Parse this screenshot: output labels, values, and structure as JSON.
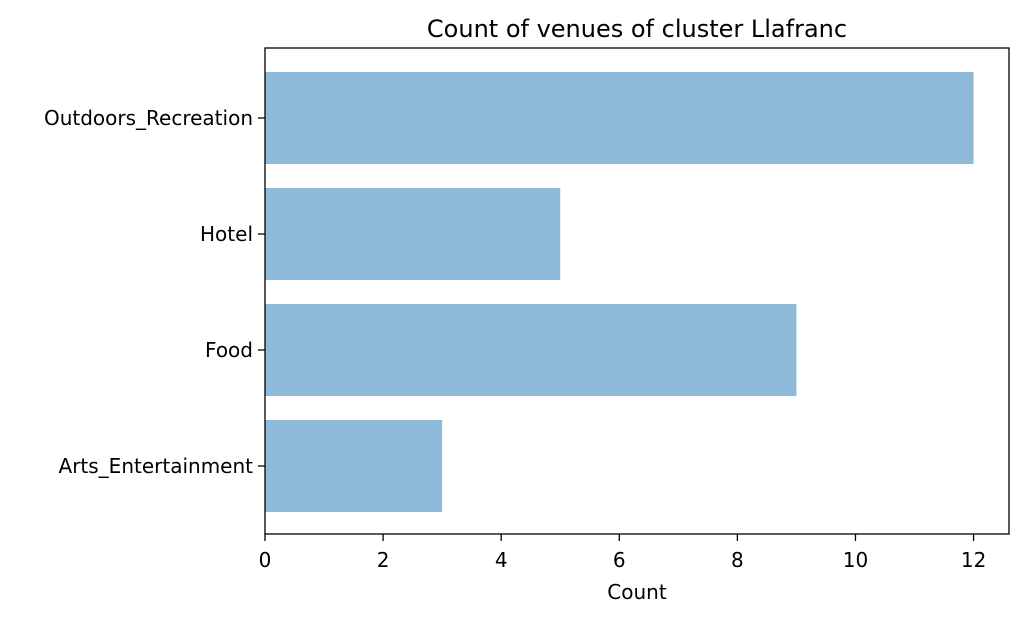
{
  "chart_data": {
    "type": "bar",
    "orientation": "horizontal",
    "title": "Count of venues of cluster Llafranc",
    "xlabel": "Count",
    "ylabel": "",
    "categories": [
      "Outdoors_Recreation",
      "Hotel",
      "Food",
      "Arts_Entertainment"
    ],
    "values": [
      12,
      5,
      9,
      3
    ],
    "xlim": [
      0,
      12.6
    ],
    "xticks": [
      0,
      2,
      4,
      6,
      8,
      10,
      12
    ],
    "grid": false,
    "legend": "none",
    "bar_color": "#8fb9d9"
  }
}
